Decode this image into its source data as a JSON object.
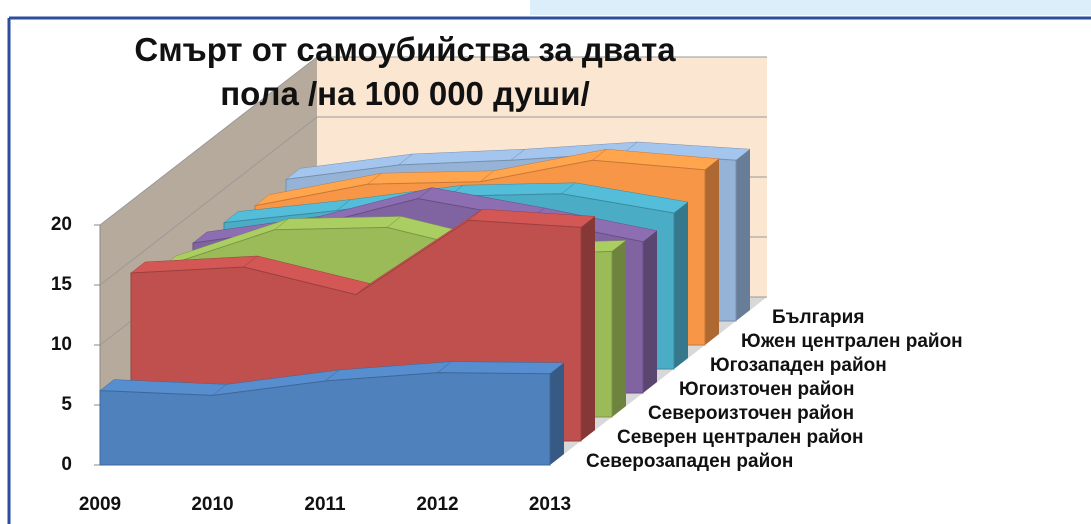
{
  "chart_data": {
    "type": "area3d",
    "title": "Смърт от самоубийства за двата пола /на 100 000 души/",
    "categories": [
      "2009",
      "2010",
      "2011",
      "2012",
      "2013"
    ],
    "ylim": [
      0,
      20
    ],
    "yticks": [
      0,
      5,
      10,
      15,
      20
    ],
    "grid": true,
    "series": [
      {
        "name": "Северозападен район",
        "color": "#4f81bd",
        "values": [
          6.2,
          5.8,
          7,
          7.7,
          7.6
        ]
      },
      {
        "name": "Северен централен район",
        "color": "#c0504d",
        "values": [
          14,
          14.5,
          12.2,
          18.4,
          17.8
        ]
      },
      {
        "name": "Североизточен район",
        "color": "#9bbb59",
        "values": [
          12.5,
          15.6,
          15.8,
          13.5,
          13.8
        ]
      },
      {
        "name": "Югоизточен район",
        "color": "#8064a2",
        "values": [
          12.5,
          13.8,
          16.2,
          14.5,
          12.6
        ]
      },
      {
        "name": "Югозападен район",
        "color": "#4bacc6",
        "values": [
          12.2,
          13.2,
          14.4,
          14.6,
          13
        ]
      },
      {
        "name": "Южен централен район",
        "color": "#f79646",
        "values": [
          11.6,
          13.4,
          13.6,
          15.4,
          14.6
        ]
      },
      {
        "name": "България",
        "color": "#95b3d7",
        "values": [
          11.8,
          13,
          13.4,
          14,
          13.4
        ]
      }
    ]
  }
}
